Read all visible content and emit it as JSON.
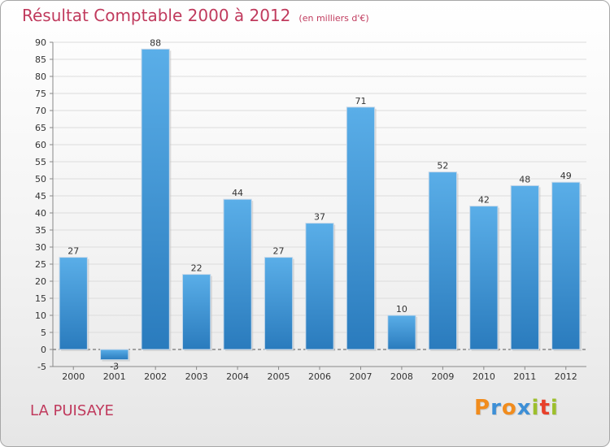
{
  "header": {
    "title": "Résultat Comptable 2000 à 2012",
    "subtitle": "(en milliers d'€)"
  },
  "footer": {
    "commune": "LA PUISAYE",
    "brand": [
      "P",
      "r",
      "o",
      "x",
      "i",
      "t",
      "i"
    ]
  },
  "colors": {
    "title": "#c03a5d",
    "bar_light": "#5aaee8",
    "bar_dark": "#2a7bbd",
    "brand_letters": [
      "#f18c1d",
      "#3d8fd6",
      "#f18c1d",
      "#3d8fd6",
      "#9dbf2c",
      "#e8402a",
      "#9dbf2c"
    ]
  },
  "chart_data": {
    "type": "bar",
    "title": "Résultat Comptable 2000 à 2012",
    "subtitle": "(en milliers d'€)",
    "xlabel": "",
    "ylabel": "",
    "categories": [
      "2000",
      "2001",
      "2002",
      "2003",
      "2004",
      "2005",
      "2006",
      "2007",
      "2008",
      "2009",
      "2010",
      "2011",
      "2012"
    ],
    "values": [
      27,
      -3,
      88,
      22,
      44,
      27,
      37,
      71,
      10,
      52,
      42,
      48,
      49
    ],
    "data_labels": [
      "27",
      "-3",
      "88",
      "22",
      "44",
      "27",
      "37",
      "71",
      "10",
      "52",
      "42",
      "48",
      "49"
    ],
    "ylim": [
      -5,
      90
    ],
    "yticks": [
      "-5",
      "0",
      "5",
      "10",
      "15",
      "20",
      "25",
      "30",
      "35",
      "40",
      "45",
      "50",
      "55",
      "60",
      "65",
      "70",
      "75",
      "80",
      "85",
      "90"
    ],
    "grid": true
  }
}
